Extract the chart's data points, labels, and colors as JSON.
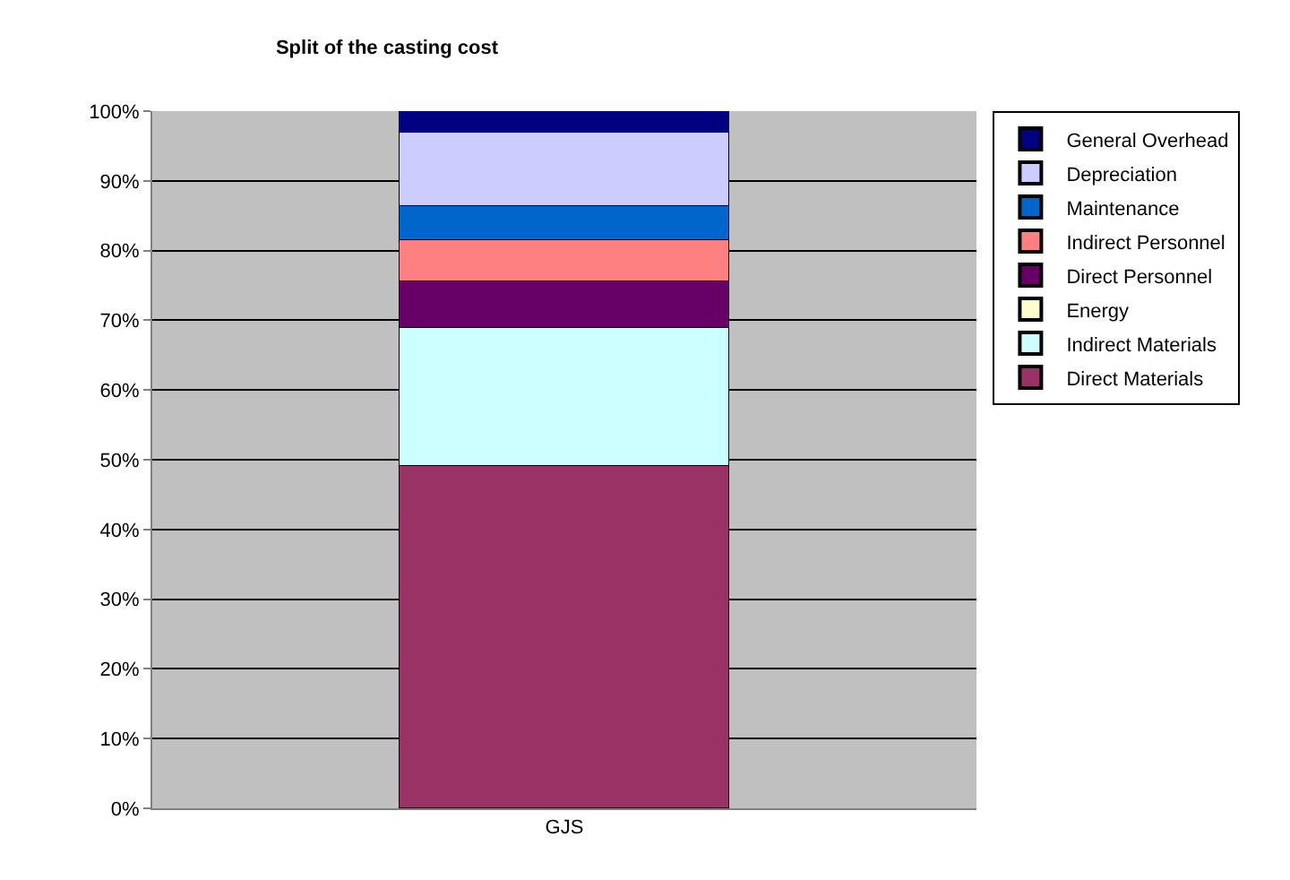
{
  "chart_data": {
    "type": "bar",
    "title": "Split of the casting cost",
    "categories": [
      "GJS"
    ],
    "stacked": true,
    "series": [
      {
        "name": "Direct Materials",
        "color": "#993366",
        "values": [
          49
        ]
      },
      {
        "name": "Indirect Materials",
        "color": "#ccffff",
        "values": [
          20
        ]
      },
      {
        "name": "Energy",
        "color": "#ffffcc",
        "values": [
          0
        ]
      },
      {
        "name": "Direct Personnel",
        "color": "#660066",
        "values": [
          6.5
        ]
      },
      {
        "name": "Indirect Personnel",
        "color": "#ff8080",
        "values": [
          6
        ]
      },
      {
        "name": "Maintenance",
        "color": "#0066cc",
        "values": [
          5
        ]
      },
      {
        "name": "Depreciation",
        "color": "#ccccff",
        "values": [
          10.5
        ]
      },
      {
        "name": "General Overhead",
        "color": "#000080",
        "values": [
          3
        ]
      }
    ],
    "ylim": [
      0,
      100
    ],
    "yticks": [
      {
        "value": 0,
        "label": "0%"
      },
      {
        "value": 10,
        "label": "10%"
      },
      {
        "value": 20,
        "label": "20%"
      },
      {
        "value": 30,
        "label": "30%"
      },
      {
        "value": 40,
        "label": "40%"
      },
      {
        "value": 50,
        "label": "50%"
      },
      {
        "value": 60,
        "label": "60%"
      },
      {
        "value": 70,
        "label": "70%"
      },
      {
        "value": 80,
        "label": "80%"
      },
      {
        "value": 90,
        "label": "90%"
      },
      {
        "value": 100,
        "label": "100%"
      }
    ],
    "grid": "y",
    "legend": "right"
  }
}
